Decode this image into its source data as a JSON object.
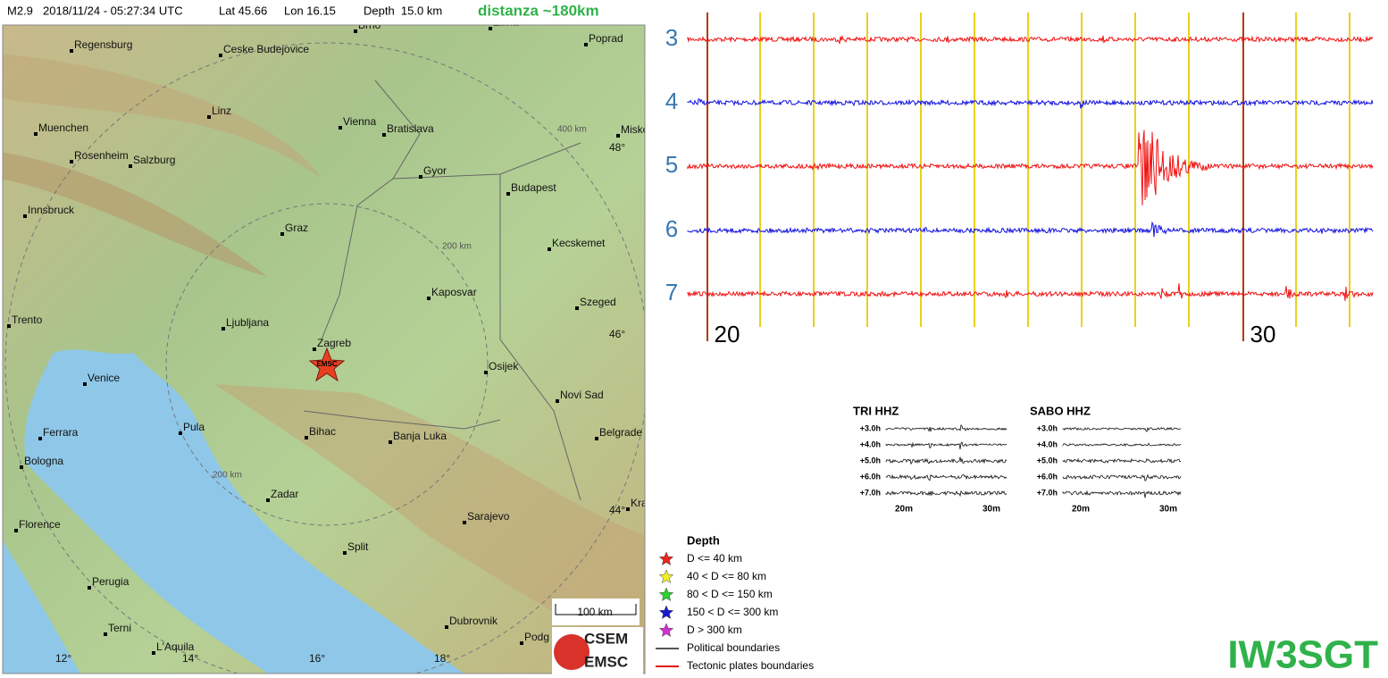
{
  "header": {
    "event": "M2.9",
    "datetime": "2018/11/24 - 05:27:34 UTC",
    "lat": "Lat 45.66",
    "lon": "Lon 16.15",
    "depth": "Depth  15.0 km",
    "distance": "distanza ~180km"
  },
  "map": {
    "cities": [
      "Brno",
      "Zilina",
      "Regensburg",
      "Ceske Budejovice",
      "Poprad",
      "Linz",
      "Vienna",
      "Bratislava",
      "Misko",
      "Muenchen",
      "Rosenheim",
      "Salzburg",
      "Gyor",
      "Budapest",
      "Innsbruck",
      "Graz",
      "Kecskemet",
      "Kaposvar",
      "Szeged",
      "Trento",
      "Ljubljana",
      "Zagreb",
      "Osijek",
      "Venice",
      "Novi Sad",
      "Ferrara",
      "Pula",
      "Bihac",
      "Banja Luka",
      "Belgrade",
      "Bologna",
      "Zadar",
      "Sarajevo",
      "Florence",
      "Split",
      "Perugia",
      "Dubrovnik",
      "Terni",
      "L'Aquila",
      "Podg",
      "Kra"
    ],
    "lat_labels": [
      "48°",
      "46°",
      "44°"
    ],
    "lon_labels": [
      "12°",
      "14°",
      "16°",
      "18°"
    ],
    "distance_labels": [
      "400 km",
      "200 km",
      "200 km"
    ],
    "marker": "EMSC",
    "scale": "100 km",
    "logo": [
      "CSEM",
      "EMSC"
    ]
  },
  "legend": {
    "title": "Depth",
    "items": [
      {
        "label": "D <= 40 km",
        "color": "#e8251e"
      },
      {
        "label": "40 < D <= 80 km",
        "color": "#f2ef2a"
      },
      {
        "label": "80 < D <= 150 km",
        "color": "#2fd02f"
      },
      {
        "label": "150 < D <= 300 km",
        "color": "#1a1ad0"
      },
      {
        "label": "D > 300 km",
        "color": "#d22fd2"
      }
    ],
    "lines": [
      {
        "label": "Political boundaries",
        "color": "#555555"
      },
      {
        "label": "Tectonic plates boundaries",
        "color": "#e01010"
      }
    ]
  },
  "helicorder": {
    "hours": [
      "3",
      "4",
      "5",
      "6",
      "7"
    ],
    "minutes": [
      "20",
      "30"
    ]
  },
  "mini": [
    {
      "title": "TRI HHZ",
      "hours": [
        "+3.0h",
        "+4.0h",
        "+5.0h",
        "+6.0h",
        "+7.0h"
      ],
      "minutes": [
        "20m",
        "30m"
      ]
    },
    {
      "title": "SABO HHZ",
      "hours": [
        "+3.0h",
        "+4.0h",
        "+5.0h",
        "+6.0h",
        "+7.0h"
      ],
      "minutes": [
        "20m",
        "30m"
      ]
    }
  ],
  "callsign": "IW3SGT"
}
